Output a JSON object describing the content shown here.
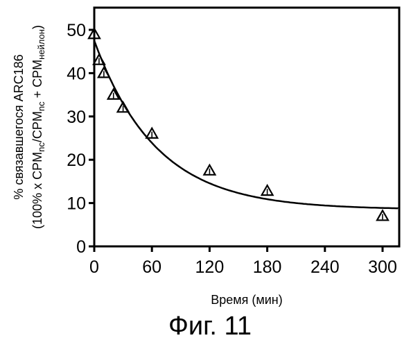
{
  "caption": "Фиг. 11",
  "chart_data": {
    "type": "scatter",
    "xlabel": "Время (мин)",
    "ylabel": {
      "line1": "% связавшегося ARC186",
      "line2_prefix": "(100% x CPM",
      "sub_nc1": "nc",
      "slash": "/CPM",
      "sub_nc2": "nc",
      "plus": " + CPM",
      "sub_nylon": "нейлон",
      "close": ")"
    },
    "xlim": [
      0,
      330
    ],
    "ylim": [
      0,
      55
    ],
    "xticks": [
      0,
      60,
      120,
      180,
      240,
      300
    ],
    "yticks": [
      0,
      10,
      20,
      30,
      40,
      50
    ],
    "series": [
      {
        "marker": "triangle",
        "x": [
          0,
          5,
          10,
          20,
          30,
          60,
          120,
          180,
          300
        ],
        "y": [
          49,
          43,
          40,
          35,
          32,
          26,
          17.5,
          12.8,
          7
        ]
      }
    ],
    "fit_curve": {
      "type": "exponential-decay",
      "plateau": 8.5,
      "y0": 47.5,
      "k": 0.0155
    }
  }
}
